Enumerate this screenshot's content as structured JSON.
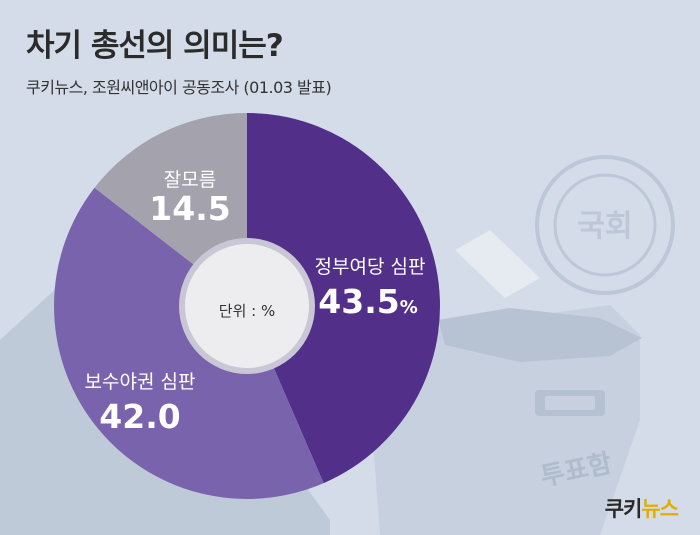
{
  "header": {
    "title": "차기 총선의 의미는?",
    "subtitle": "쿠키뉴스, 조원씨앤아이 공동조사 (01.03 발표)"
  },
  "chart_data": {
    "type": "pie",
    "title": "차기 총선의 의미는?",
    "center_label": "단위 : %",
    "slices": [
      {
        "label": "정부여당 심판",
        "value": 43.5,
        "display": "43.5",
        "unit": "%",
        "color": "#523089"
      },
      {
        "label": "보수야권 심판",
        "value": 42.0,
        "display": "42.0",
        "unit": "",
        "color": "#7a63ad"
      },
      {
        "label": "잘모름",
        "value": 14.5,
        "display": "14.5",
        "unit": "",
        "color": "#a4a2ad"
      }
    ]
  },
  "decor": {
    "emblem_text": "국회",
    "ballot_box_text": "투표함"
  },
  "brand": {
    "part1": "쿠키",
    "part2": "뉴스"
  },
  "colors": {
    "background": "#d3dce8",
    "decor": "#bcc7d7",
    "center_circle": "#ededf0",
    "title": "#2b2b2b"
  }
}
